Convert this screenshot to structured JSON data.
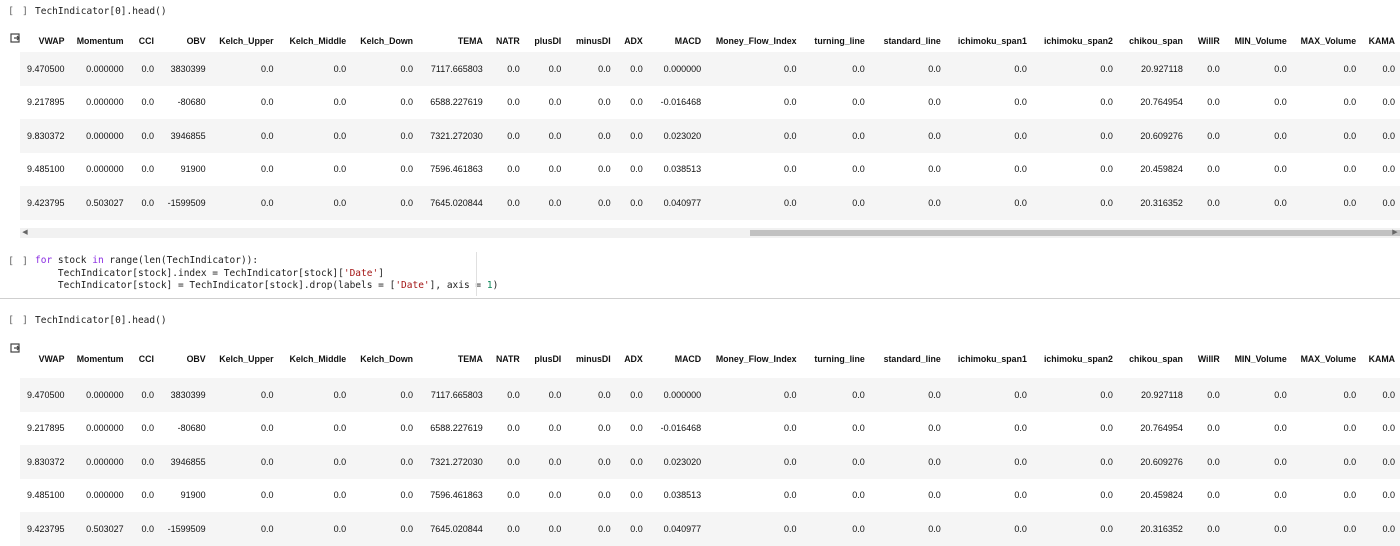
{
  "cells": [
    {
      "run_label": "[ ]",
      "code": "TechIndicator[0].head()"
    },
    {
      "run_label": "[ ]",
      "code_lines": [
        [
          {
            "t": "kw",
            "v": "for"
          },
          {
            "t": "",
            "v": " stock "
          },
          {
            "t": "kw",
            "v": "in"
          },
          {
            "t": "",
            "v": " range(len(TechIndicator)):"
          }
        ],
        [
          {
            "t": "",
            "v": "    TechIndicator[stock].index = TechIndicator[stock]["
          },
          {
            "t": "str",
            "v": "'Date'"
          },
          {
            "t": "",
            "v": "]"
          }
        ],
        [
          {
            "t": "",
            "v": "    TechIndicator[stock] = TechIndicator[stock].drop(labels = ["
          },
          {
            "t": "str",
            "v": "'Date'"
          },
          {
            "t": "",
            "v": "], axis = "
          },
          {
            "t": "num",
            "v": "1"
          },
          {
            "t": "",
            "v": ")"
          }
        ]
      ]
    },
    {
      "run_label": "[ ]",
      "code": "TechIndicator[0].head()"
    }
  ],
  "table": {
    "columns": [
      "VWAP",
      "Momentum",
      "CCI",
      "OBV",
      "Kelch_Upper",
      "Kelch_Middle",
      "Kelch_Down",
      "TEMA",
      "NATR",
      "plusDI",
      "minusDI",
      "ADX",
      "MACD",
      "Money_Flow_Index",
      "turning_line",
      "standard_line",
      "ichimoku_span1",
      "ichimoku_span2",
      "chikou_span",
      "WillR",
      "MIN_Volume",
      "MAX_Volume",
      "KAMA"
    ],
    "rows": [
      [
        "9.470500",
        "0.000000",
        "0.0",
        "3830399",
        "0.0",
        "0.0",
        "0.0",
        "7117.665803",
        "0.0",
        "0.0",
        "0.0",
        "0.0",
        "0.000000",
        "0.0",
        "0.0",
        "0.0",
        "0.0",
        "0.0",
        "20.927118",
        "0.0",
        "0.0",
        "0.0",
        "0.0"
      ],
      [
        "9.217895",
        "0.000000",
        "0.0",
        "-80680",
        "0.0",
        "0.0",
        "0.0",
        "6588.227619",
        "0.0",
        "0.0",
        "0.0",
        "0.0",
        "-0.016468",
        "0.0",
        "0.0",
        "0.0",
        "0.0",
        "0.0",
        "20.764954",
        "0.0",
        "0.0",
        "0.0",
        "0.0"
      ],
      [
        "9.830372",
        "0.000000",
        "0.0",
        "3946855",
        "0.0",
        "0.0",
        "0.0",
        "7321.272030",
        "0.0",
        "0.0",
        "0.0",
        "0.0",
        "0.023020",
        "0.0",
        "0.0",
        "0.0",
        "0.0",
        "0.0",
        "20.609276",
        "0.0",
        "0.0",
        "0.0",
        "0.0"
      ],
      [
        "9.485100",
        "0.000000",
        "0.0",
        "91900",
        "0.0",
        "0.0",
        "0.0",
        "7596.461863",
        "0.0",
        "0.0",
        "0.0",
        "0.0",
        "0.038513",
        "0.0",
        "0.0",
        "0.0",
        "0.0",
        "0.0",
        "20.459824",
        "0.0",
        "0.0",
        "0.0",
        "0.0"
      ],
      [
        "9.423795",
        "0.503027",
        "0.0",
        "-1599509",
        "0.0",
        "0.0",
        "0.0",
        "7645.020844",
        "0.0",
        "0.0",
        "0.0",
        "0.0",
        "0.040977",
        "0.0",
        "0.0",
        "0.0",
        "0.0",
        "0.0",
        "20.316352",
        "0.0",
        "0.0",
        "0.0",
        "0.0"
      ]
    ]
  }
}
